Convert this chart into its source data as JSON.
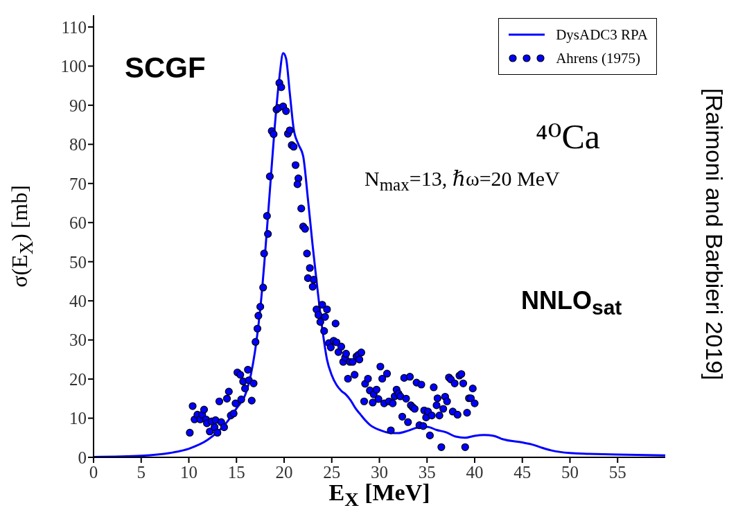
{
  "chart_data": {
    "type": "line",
    "xlabel": "E$_{X}$ [MeV]",
    "ylabel": "σ(E$_{X}$) [mb]",
    "annotations": [
      "SCGF",
      "⁴⁰Ca",
      "N$_{max}$=13, ℏω=20 MeV",
      "NNLO$_{sat}$",
      "[Raimoni and Barbieri 2019]"
    ],
    "xlim": [
      0,
      60
    ],
    "xticks": [
      0,
      5,
      10,
      15,
      20,
      25,
      30,
      35,
      40,
      45,
      50,
      55
    ],
    "ylim": [
      0,
      113
    ],
    "yticks": [
      0,
      10,
      20,
      30,
      40,
      50,
      60,
      70,
      80,
      90,
      100,
      110
    ],
    "legend": "top right",
    "line_style": "solid",
    "series": [
      {
        "name": "DysADC3 RPA",
        "color": "#0000ff",
        "marker": "none",
        "x": [
          0,
          5,
          8,
          10,
          12,
          14,
          15,
          16,
          16.5,
          17,
          17.5,
          18,
          18.5,
          19,
          19.5,
          19.9,
          20.2,
          20.6,
          21,
          21.5,
          22,
          22.5,
          23,
          23.5,
          24,
          24.5,
          25,
          25.5,
          26,
          26.5,
          27,
          27.5,
          28,
          28.5,
          29,
          30,
          31,
          32,
          33,
          34,
          35,
          36,
          37,
          38,
          39,
          40,
          41,
          42,
          43,
          45,
          46,
          47,
          48,
          50,
          52,
          55,
          60
        ],
        "values": [
          0.1,
          0.4,
          1.1,
          2.2,
          4.5,
          9,
          12.5,
          16.5,
          21,
          28,
          38,
          52,
          68,
          84,
          97,
          103.3,
          102,
          93,
          84,
          80,
          77,
          66,
          54,
          43,
          33,
          25,
          21,
          18.5,
          17,
          16,
          14.5,
          12.5,
          11,
          9.5,
          8.3,
          7,
          6.3,
          6.2,
          6.8,
          7.6,
          7.8,
          7,
          6.4,
          5.3,
          5,
          5.5,
          5.7,
          5.5,
          4.6,
          3.8,
          3.3,
          2.5,
          1.8,
          1.1,
          0.9,
          0.7,
          0.5
        ]
      },
      {
        "name": "Ahrens (1975)",
        "type": "scatter",
        "color": "#0000ff",
        "marker": "circle",
        "x": [
          10.1,
          10.4,
          10.6,
          10.9,
          11.2,
          11.4,
          11.6,
          11.8,
          11.9,
          12.2,
          12.4,
          12.7,
          12.8,
          13.0,
          13.2,
          13.4,
          13.7,
          14.0,
          14.2,
          14.4,
          14.7,
          14.9,
          15.1,
          15.4,
          15.5,
          15.7,
          15.9,
          16.2,
          16.3,
          16.6,
          16.8,
          17.0,
          17.2,
          17.3,
          17.5,
          17.8,
          17.9,
          18.2,
          18.3,
          18.5,
          18.7,
          18.9,
          19.2,
          19.4,
          19.5,
          19.7,
          19.9,
          20.2,
          20.4,
          20.6,
          20.8,
          21.0,
          21.2,
          21.5,
          21.4,
          21.8,
          22.0,
          22.2,
          22.4,
          22.7,
          22.5,
          23.0,
          23.1,
          23.4,
          23.6,
          23.8,
          24.0,
          24.2,
          24.3,
          24.5,
          24.7,
          24.9,
          25.2,
          25.4,
          25.5,
          25.7,
          26.0,
          26.2,
          26.4,
          26.5,
          26.7,
          26.9,
          27.2,
          27.4,
          27.6,
          27.8,
          27.9,
          28.1,
          28.4,
          28.5,
          28.8,
          29.0,
          29.3,
          29.4,
          29.7,
          29.9,
          30.1,
          30.3,
          30.5,
          30.8,
          31.0,
          31.2,
          31.4,
          31.6,
          31.8,
          32.0,
          32.2,
          32.4,
          32.6,
          32.8,
          33.0,
          33.2,
          33.3,
          33.5,
          33.7,
          33.9,
          34.2,
          34.4,
          34.6,
          34.7,
          34.9,
          35.1,
          35.3,
          35.5,
          35.7,
          36.0,
          36.1,
          36.3,
          36.5,
          36.7,
          36.9,
          37.1,
          37.3,
          37.5,
          37.7,
          37.9,
          38.2,
          38.4,
          38.6,
          38.8,
          39.0,
          39.2,
          39.4,
          39.6,
          39.8,
          40.0
        ],
        "values": [
          6.3,
          13.1,
          9.7,
          10.9,
          9.7,
          10.9,
          12.2,
          9.7,
          8.7,
          6.6,
          9.2,
          7.7,
          9.5,
          6.3,
          14.3,
          9.0,
          7.7,
          15.0,
          16.8,
          10.7,
          11.2,
          13.8,
          21.7,
          21.1,
          14.8,
          19.4,
          17.6,
          22.4,
          19.7,
          14.5,
          18.9,
          29.5,
          32.9,
          36.2,
          38.5,
          43.4,
          52.1,
          61.7,
          57.1,
          71.8,
          83.4,
          82.6,
          88.9,
          89.3,
          95.7,
          94.6,
          89.7,
          88.5,
          82.7,
          83.6,
          79.8,
          79.4,
          74.7,
          71.3,
          69.8,
          63.6,
          59.0,
          58.4,
          52.1,
          48.4,
          45.8,
          43.6,
          45.4,
          37.8,
          36.4,
          34.6,
          39.0,
          32.3,
          35.9,
          37.8,
          29.2,
          28.1,
          29.8,
          34.2,
          29.4,
          26.9,
          28.3,
          24.4,
          25.5,
          26.5,
          20.1,
          24.4,
          24.4,
          21.1,
          25.8,
          26.2,
          25.0,
          26.8,
          14.3,
          18.8,
          20.1,
          17.1,
          14.0,
          16.1,
          17.3,
          14.9,
          23.2,
          20.1,
          13.8,
          21.4,
          14.3,
          6.9,
          13.8,
          15.6,
          17.3,
          16.3,
          15.6,
          10.4,
          20.3,
          15.0,
          9.0,
          20.6,
          13.3,
          12.8,
          12.4,
          19.1,
          8.2,
          18.6,
          8.0,
          12.0,
          10.2,
          11.7,
          5.6,
          10.7,
          17.9,
          13.3,
          15.1,
          10.7,
          2.6,
          12.4,
          15.5,
          14.3,
          20.4,
          19.9,
          11.7,
          18.9,
          10.9,
          20.9,
          21.3,
          18.9,
          2.6,
          11.4,
          15.1,
          15.1,
          17.6,
          13.8
        ]
      }
    ]
  }
}
